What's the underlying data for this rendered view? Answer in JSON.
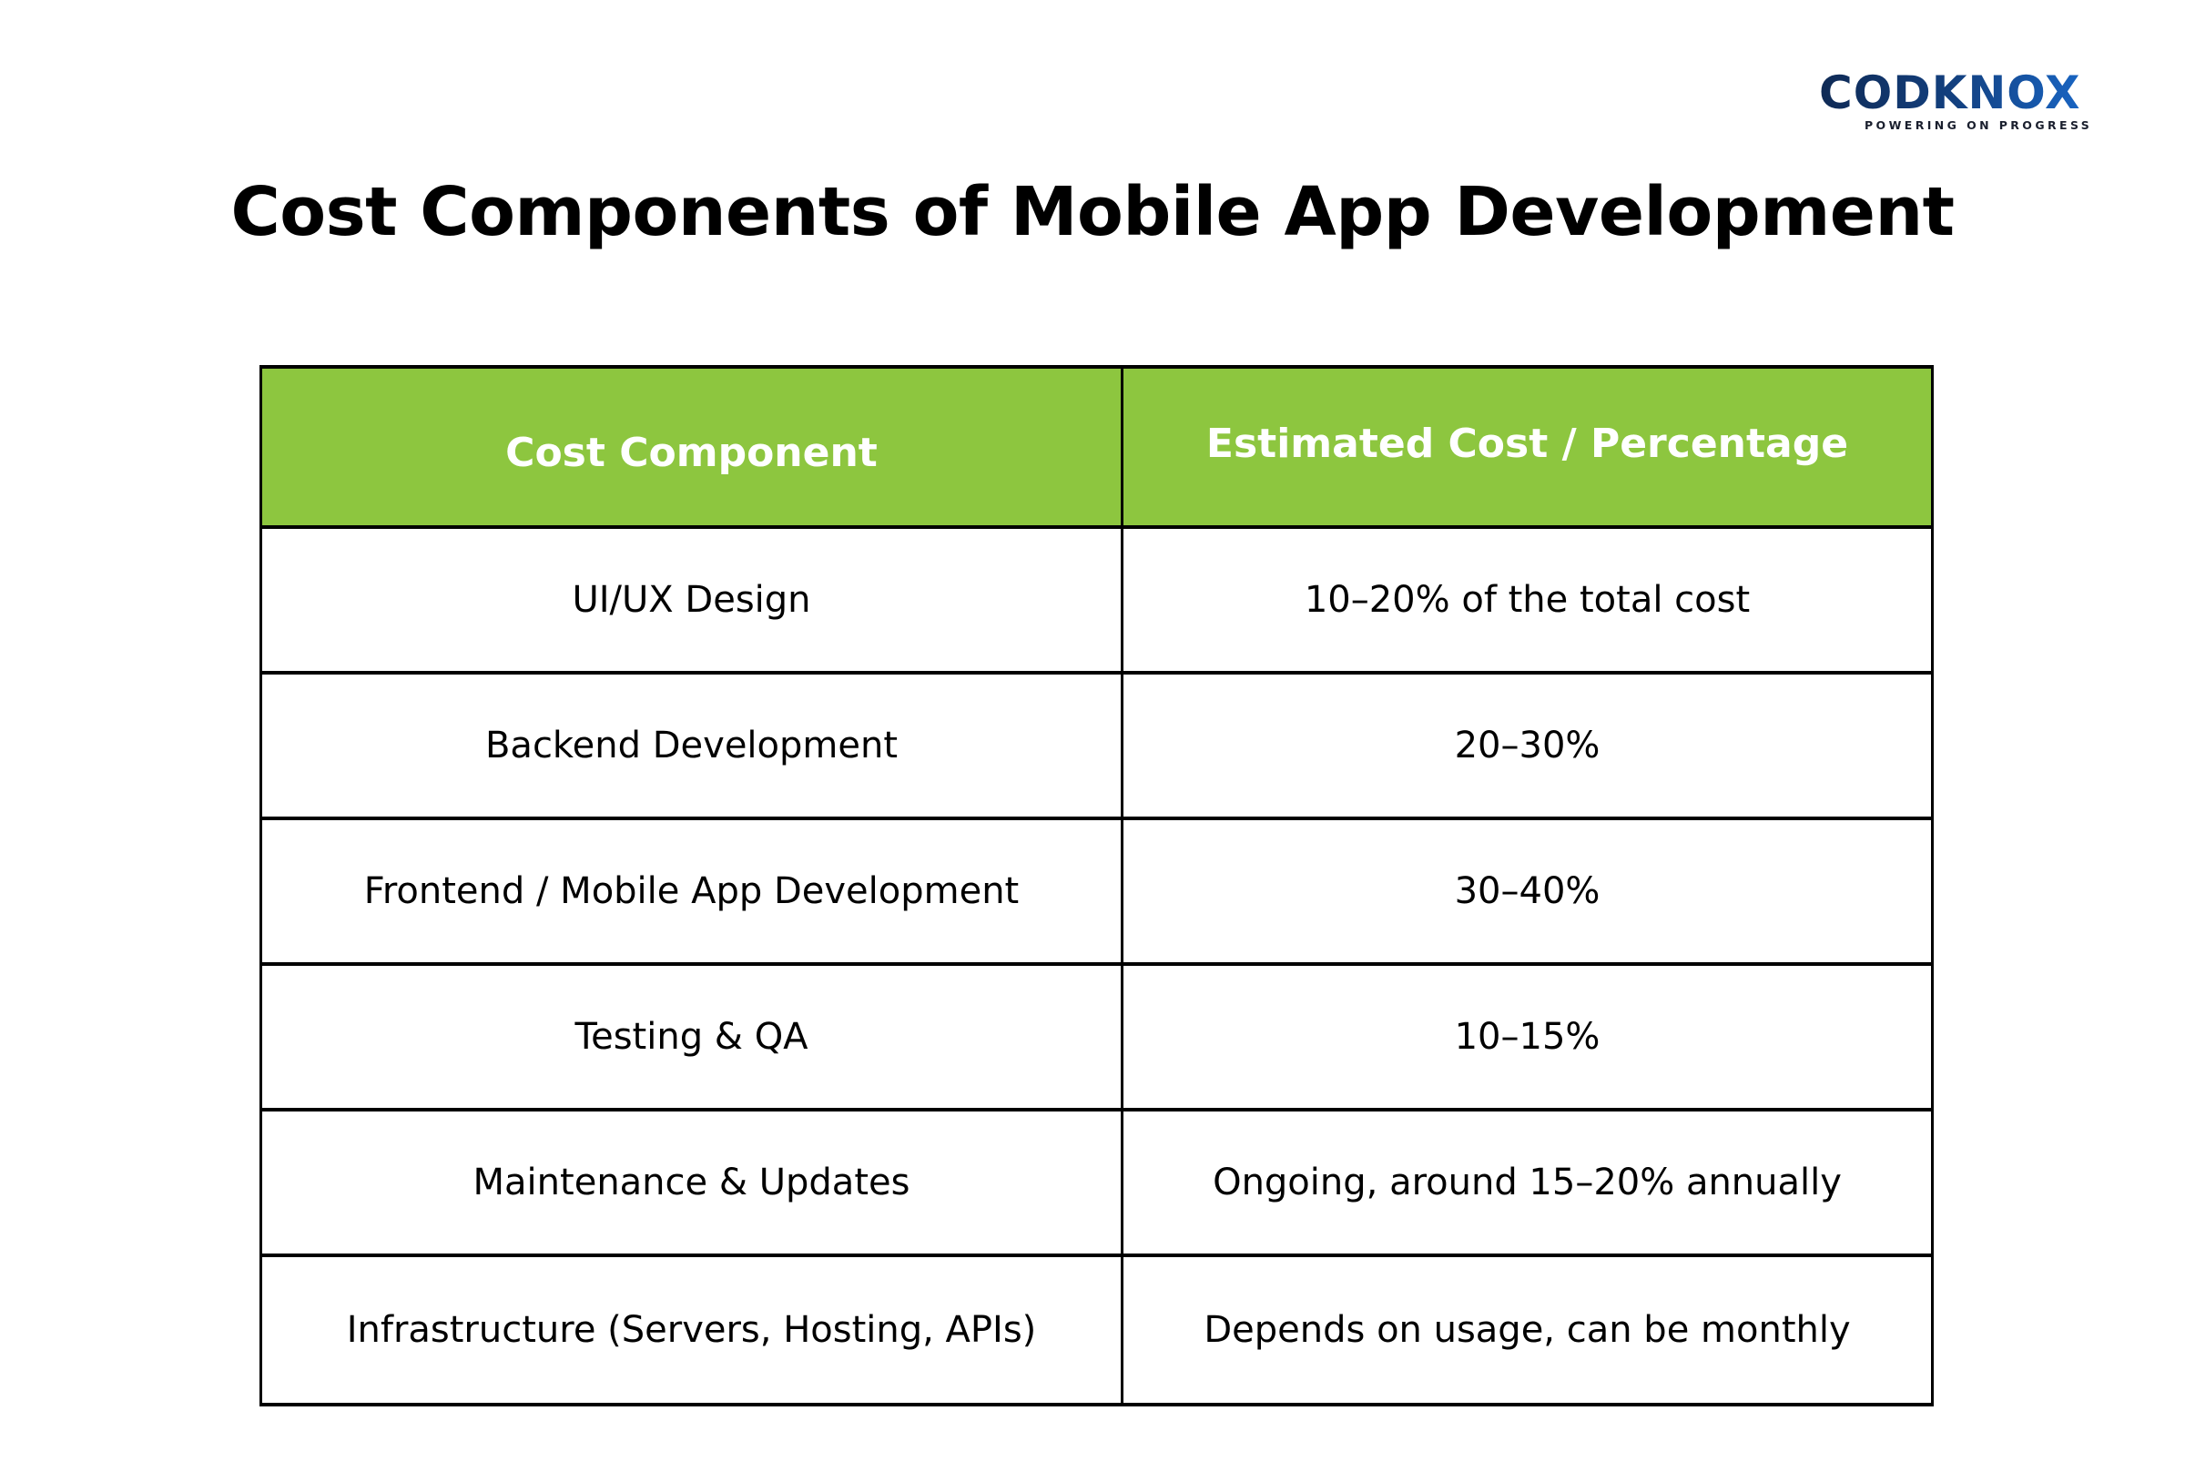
{
  "brand": {
    "name": "CODKNOX",
    "tagline": "POWERING ON PROGRESS",
    "colors": {
      "primary_dark": "#0f2a55",
      "primary_light": "#1a6fd6"
    }
  },
  "title": "Cost Components of Mobile App Development",
  "table": {
    "header_color": "#8DC63F",
    "headers": [
      "Cost Component",
      "Estimated Cost / Percentage"
    ],
    "rows": [
      [
        "UI/UX Design",
        "10–20% of the total cost"
      ],
      [
        "Backend Development",
        "20–30%"
      ],
      [
        "Frontend / Mobile App Development",
        "30–40%"
      ],
      [
        "Testing & QA",
        "10–15%"
      ],
      [
        "Maintenance & Updates",
        "Ongoing, around 15–20% annually"
      ],
      [
        "Infrastructure (Servers, Hosting, APIs)",
        "Depends on usage, can be monthly"
      ]
    ]
  }
}
